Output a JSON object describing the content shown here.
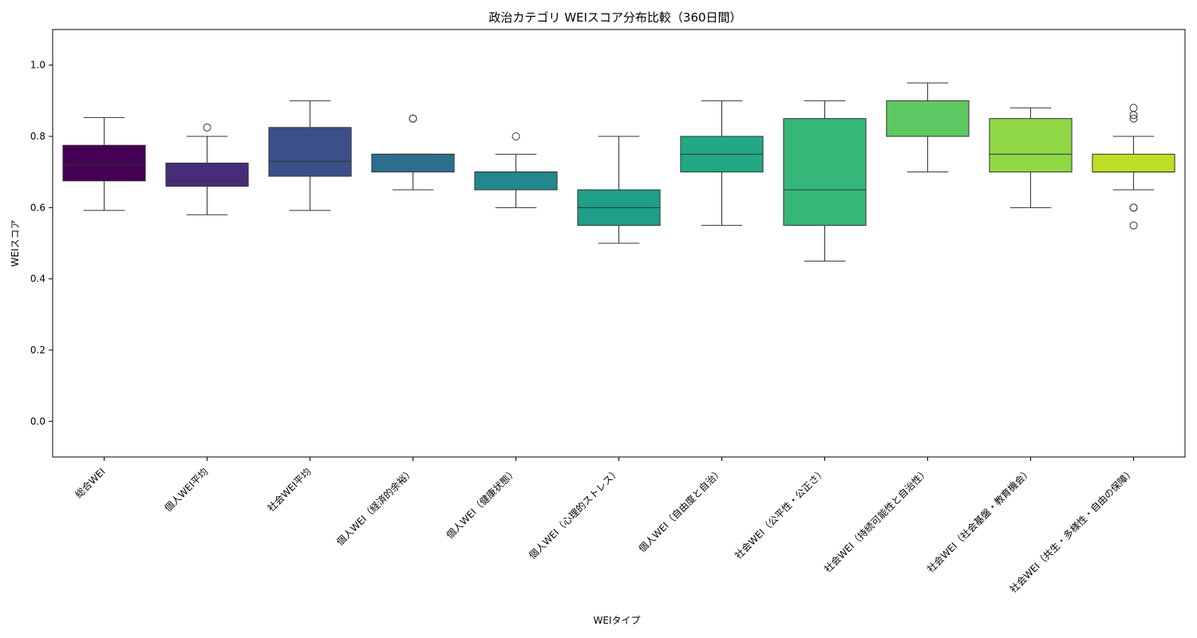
{
  "chart_data": {
    "type": "box",
    "title": "政治カテゴリ WEIスコア分布比較（360日間）",
    "xlabel": "WEIタイプ",
    "ylabel": "WEIスコア",
    "ylim": [
      -0.1,
      1.1
    ],
    "yticks": [
      0.0,
      0.2,
      0.4,
      0.6,
      0.8,
      1.0
    ],
    "ytick_labels": [
      "0.0",
      "0.2",
      "0.4",
      "0.6",
      "0.8",
      "1.0"
    ],
    "grid": false,
    "categories": [
      "総合WEI",
      "個人WEI平均",
      "社会WEI平均",
      "個人WEI（経済的余裕）",
      "個人WEI（健康状態）",
      "個人WEI（心理的ストレス）",
      "個人WEI（自由度と自治）",
      "社会WEI（公平性・公正さ）",
      "社会WEI（持続可能性と自治性）",
      "社会WEI（社会基盤・教育機会）",
      "社会WEI（共生・多様性・自由の保障）"
    ],
    "boxes": [
      {
        "whisker_low": 0.592,
        "q1": 0.675,
        "median": 0.72,
        "q3": 0.775,
        "whisker_high": 0.853,
        "outliers": [],
        "color": "#440154"
      },
      {
        "whisker_low": 0.58,
        "q1": 0.66,
        "median": 0.675,
        "q3": 0.725,
        "whisker_high": 0.8,
        "outliers": [
          0.825
        ],
        "color": "#472c7a"
      },
      {
        "whisker_low": 0.592,
        "q1": 0.688,
        "median": 0.73,
        "q3": 0.825,
        "whisker_high": 0.9,
        "outliers": [],
        "color": "#3b4f8a"
      },
      {
        "whisker_low": 0.65,
        "q1": 0.7,
        "median": 0.75,
        "q3": 0.75,
        "whisker_high": 0.75,
        "outliers": [
          0.85,
          0.85
        ],
        "color": "#2c6e8e"
      },
      {
        "whisker_low": 0.6,
        "q1": 0.65,
        "median": 0.7,
        "q3": 0.7,
        "whisker_high": 0.75,
        "outliers": [
          0.8
        ],
        "color": "#23888e"
      },
      {
        "whisker_low": 0.5,
        "q1": 0.55,
        "median": 0.6,
        "q3": 0.65,
        "whisker_high": 0.8,
        "outliers": [],
        "color": "#1f9f88"
      },
      {
        "whisker_low": 0.55,
        "q1": 0.7,
        "median": 0.75,
        "q3": 0.8,
        "whisker_high": 0.9,
        "outliers": [],
        "color": "#22a884"
      },
      {
        "whisker_low": 0.45,
        "q1": 0.55,
        "median": 0.65,
        "q3": 0.85,
        "whisker_high": 0.9,
        "outliers": [],
        "color": "#35b779"
      },
      {
        "whisker_low": 0.7,
        "q1": 0.8,
        "median": 0.8,
        "q3": 0.9,
        "whisker_high": 0.95,
        "outliers": [],
        "color": "#5ec962"
      },
      {
        "whisker_low": 0.6,
        "q1": 0.7,
        "median": 0.75,
        "q3": 0.85,
        "whisker_high": 0.88,
        "outliers": [],
        "color": "#8fd744"
      },
      {
        "whisker_low": 0.65,
        "q1": 0.7,
        "median": 0.7,
        "q3": 0.75,
        "whisker_high": 0.8,
        "outliers": [
          0.88,
          0.86,
          0.85,
          0.6,
          0.6,
          0.55
        ],
        "color": "#bddf26"
      }
    ]
  }
}
